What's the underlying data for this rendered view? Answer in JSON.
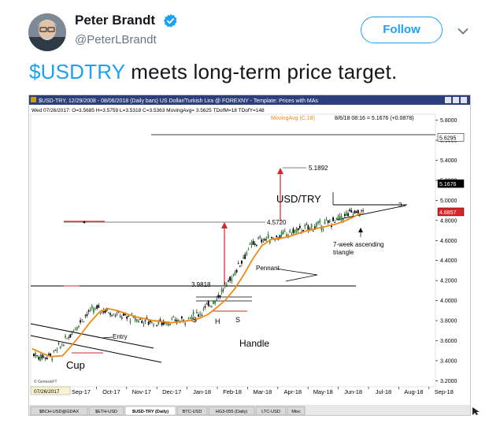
{
  "tweet": {
    "author_name": "Peter Brandt",
    "author_handle": "@PeterLBrandt",
    "follow_label": "Follow",
    "cashtag": "$USDTRY",
    "text_rest": " meets long-term price target.",
    "icons": {
      "verified": "verified-badge-icon",
      "menu": "chevron-down-icon"
    },
    "accent_color": "#1da1f2"
  },
  "chart_window": {
    "title_bar": "$USD-TRY,  12/29/2008 - 08/06/2018 (Daily bars)  US Dollar/Turkish Lira @ FOREXNY  -  Template: Prices with MAs",
    "info_line": "Wed  07/26/2017:  O=3.5685  H=3.5759  L=3.5318  C=3.5363  MovingAvg= 3.5625  TDofM=18  TDofY=148",
    "ma_label": "MovingAvg (C,18)",
    "last_bar_info": "8/6/18 08:16 = 5.1676 (+0.0878)",
    "watermark": "© GenesisFT",
    "date_box": "07/26/2017",
    "tabs": [
      "$BCH-USD@GDAX",
      "$ETH-USD",
      "$USD-TRY (Daily)",
      "BTC-USD",
      "HG3-055 (Daily)",
      "LTC-USD",
      "Misc"
    ],
    "active_tab": "$USD-TRY (Daily)"
  },
  "chart_data": {
    "type": "candlestick",
    "x_ticks": [
      "Sep-17",
      "Oct-17",
      "Nov-17",
      "Dec-17",
      "Jan-18",
      "Feb-18",
      "Mar-18",
      "Apr-18",
      "May-18",
      "Jun-18",
      "Jul-18",
      "Aug-18",
      "Sep-18"
    ],
    "y_ticks": [
      "5.8000",
      "5.6000",
      "5.4000",
      "5.2000",
      "5.0000",
      "4.8000",
      "4.6000",
      "4.4000",
      "4.2000",
      "4.0000",
      "3.8000",
      "3.6000",
      "3.4000",
      "3.2000"
    ],
    "y_tick_values": [
      5.8,
      5.6,
      5.4,
      5.2,
      5.0,
      4.8,
      4.6,
      4.4,
      4.2,
      4.0,
      3.8,
      3.6,
      3.4,
      3.2
    ],
    "ylim": [
      3.14,
      5.86
    ],
    "price_boxes": [
      {
        "label": "5.6295",
        "value": 5.6295,
        "color": "#ffffff"
      },
      {
        "label": "5.1676",
        "value": 5.1676,
        "color": "#000000"
      },
      {
        "label": "4.8857",
        "value": 4.8857,
        "color": "#d7262a"
      }
    ],
    "levels": [
      {
        "label": "5.1892",
        "value": 5.1892
      },
      {
        "label": "4.5720",
        "value": 4.572
      },
      {
        "label": "3.9818",
        "value": 3.9818
      }
    ],
    "annotations": [
      "USD/TRY",
      "Pennant",
      "7-week ascending triangle",
      "Entry",
      "Cup",
      "Handle",
      "S",
      "H",
      "S",
      "3"
    ],
    "series": [
      {
        "name": "MovingAvg (C,18)",
        "color": "#f08a17",
        "x": [
          0,
          0.3,
          0.6,
          1.0,
          1.3,
          1.6,
          1.9,
          2.2,
          2.5,
          2.8,
          3.1,
          3.4,
          3.7,
          4.0,
          4.3,
          4.6,
          4.9,
          5.2,
          5.5,
          5.8,
          6.1,
          6.4,
          6.7,
          7.0,
          7.3,
          7.6,
          7.9,
          8.2,
          8.5,
          8.8,
          9.1,
          9.4,
          9.7,
          10.0,
          10.3,
          10.6,
          10.9
        ],
        "y": [
          3.52,
          3.48,
          3.44,
          3.45,
          3.55,
          3.66,
          3.78,
          3.88,
          3.92,
          3.9,
          3.87,
          3.84,
          3.82,
          3.8,
          3.79,
          3.78,
          3.79,
          3.8,
          3.82,
          3.86,
          3.93,
          4.01,
          4.12,
          4.26,
          4.42,
          4.55,
          4.61,
          4.62,
          4.64,
          4.67,
          4.7,
          4.72,
          4.74,
          4.76,
          4.79,
          4.83,
          4.88
        ]
      }
    ]
  }
}
